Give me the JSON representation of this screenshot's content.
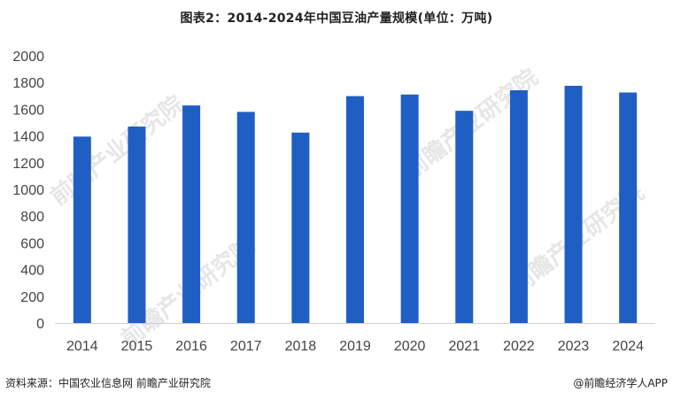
{
  "chart_data": {
    "type": "bar",
    "title": "图表2：2014-2024年中国豆油产量规模(单位：万吨)",
    "categories": [
      "2014",
      "2015",
      "2016",
      "2017",
      "2018",
      "2019",
      "2020",
      "2021",
      "2022",
      "2023",
      "2024"
    ],
    "values": [
      1395,
      1470,
      1628,
      1580,
      1425,
      1698,
      1710,
      1588,
      1742,
      1775,
      1725
    ],
    "ylim": [
      0,
      2000
    ],
    "yticks": [
      0,
      200,
      400,
      600,
      800,
      1000,
      1200,
      1400,
      1600,
      1800,
      2000
    ],
    "grid": false,
    "legend": "none",
    "bar_color": "#1f5fc4"
  },
  "footer": {
    "source": "资料来源：中国农业信息网 前瞻产业研究院",
    "credit": "@前瞻经济学人APP"
  },
  "watermark_text": "前瞻产业研究院"
}
